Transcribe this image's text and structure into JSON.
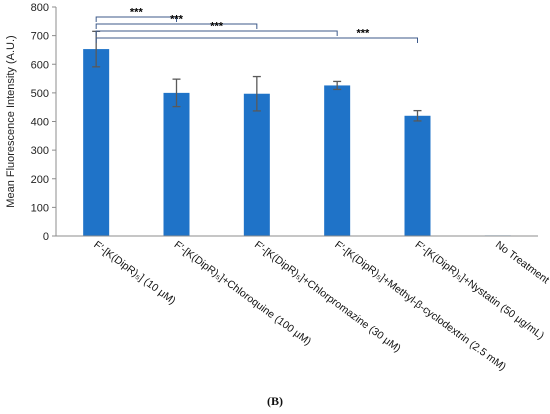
{
  "panel_label": "(B)",
  "colors": {
    "bar": "#1f73c8",
    "axis": "#8c8c8c",
    "error_bar": "#595959",
    "bracket": "#3d5a8a"
  },
  "chart_data": {
    "type": "bar",
    "ylabel": "Mean Fluorescence Intensity (A.U.)",
    "xlabel": "",
    "title": "",
    "ylim": [
      0,
      800
    ],
    "yticks": [
      "0",
      "100",
      "200",
      "300",
      "400",
      "500",
      "600",
      "700",
      "800"
    ],
    "grid": false,
    "categories": [
      "F′-[K(DipR)₅] (10 μM)",
      "F′-[K(DipR)₅]+Chloroquine (100 μM)",
      "F′-[K(DipR)₅]+Chlorpromazine (30 μM)",
      "F′-[K(DipR)₅]+Methyl-β-cyclodextrin (2.5 mM)",
      "F′-[K(DipR)₅]+Nystatin (50 μg/mL)",
      "No Treatment"
    ],
    "values": [
      653,
      500,
      497,
      526,
      420,
      2
    ],
    "errors": [
      62,
      48,
      60,
      14,
      18,
      0
    ],
    "significance": [
      {
        "from": 0,
        "to": 1,
        "label": "***"
      },
      {
        "from": 0,
        "to": 2,
        "label": "***"
      },
      {
        "from": 0,
        "to": 3,
        "label": "***"
      },
      {
        "from": 0,
        "to": 4,
        "label": "***"
      }
    ]
  }
}
